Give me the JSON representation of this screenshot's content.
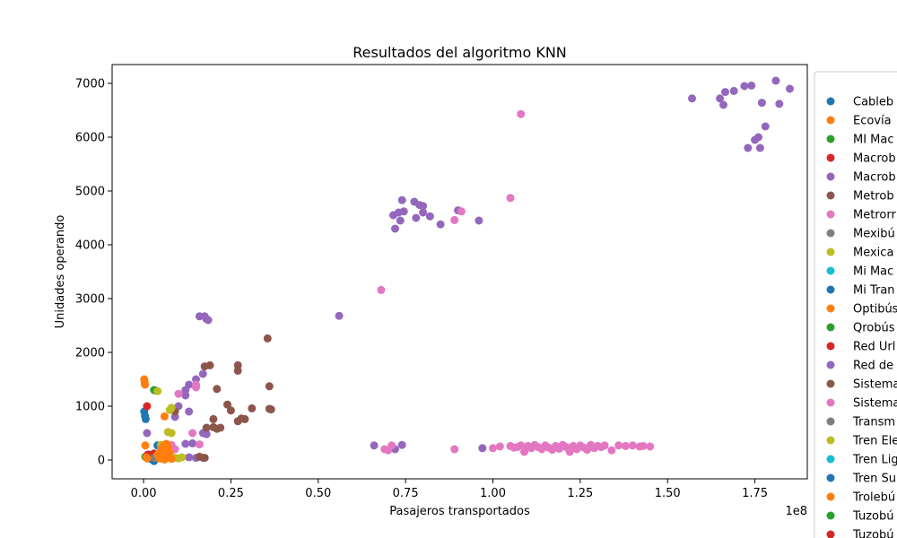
{
  "chart_data": {
    "type": "scatter",
    "title": "Resultados del algoritmo KNN",
    "xlabel": "Pasajeros transportados",
    "ylabel": "Unidades operando",
    "x_offset_label": "1e8",
    "xlim": [
      -0.09,
      1.9
    ],
    "ylim": [
      -350,
      7350
    ],
    "x_ticks": [
      0.0,
      0.25,
      0.5,
      0.75,
      1.0,
      1.25,
      1.5,
      1.75
    ],
    "x_tick_labels": [
      "0.00",
      "0.25",
      "0.50",
      "0.75",
      "1.00",
      "1.25",
      "1.50",
      "1.75"
    ],
    "y_ticks": [
      0,
      1000,
      2000,
      3000,
      4000,
      5000,
      6000,
      7000
    ],
    "y_tick_labels": [
      "0",
      "1000",
      "2000",
      "3000",
      "4000",
      "5000",
      "6000",
      "7000"
    ],
    "grid": false,
    "legend_position": "right, outside, clipped",
    "series": [
      {
        "name": "Cableb",
        "color": "#1f77b4",
        "points": [
          [
            0.002,
            900
          ],
          [
            0.004,
            820
          ],
          [
            0.006,
            760
          ],
          [
            0.01,
            50
          ],
          [
            0.02,
            20
          ],
          [
            0.03,
            -20
          ],
          [
            0.035,
            1290
          ],
          [
            0.05,
            60
          ],
          [
            0.06,
            30
          ],
          [
            0.04,
            270
          ],
          [
            0.015,
            100
          ]
        ]
      },
      {
        "name": "Ecovía",
        "color": "#ff7f0e",
        "points": []
      },
      {
        "name": "MI Mac",
        "color": "#2ca02c",
        "points": [
          [
            0.03,
            1300
          ],
          [
            0.005,
            60
          ],
          [
            0.02,
            80
          ]
        ]
      },
      {
        "name": "Macrob",
        "color": "#d62728",
        "points": [
          [
            0.01,
            1000
          ],
          [
            0.012,
            100
          ],
          [
            0.02,
            60
          ],
          [
            0.03,
            120
          ]
        ]
      },
      {
        "name": "Macrob",
        "color": "#9467bd",
        "points": [
          [
            1.57,
            6720
          ],
          [
            1.65,
            6720
          ],
          [
            1.66,
            6600
          ],
          [
            1.665,
            6840
          ],
          [
            1.69,
            6860
          ],
          [
            1.72,
            6950
          ],
          [
            1.74,
            6960
          ],
          [
            1.77,
            6640
          ],
          [
            1.81,
            7050
          ],
          [
            1.82,
            6620
          ],
          [
            1.85,
            6900
          ],
          [
            1.78,
            6200
          ],
          [
            1.75,
            5950
          ],
          [
            1.76,
            6000
          ],
          [
            1.73,
            5800
          ],
          [
            1.765,
            5800
          ],
          [
            0.72,
            4300
          ],
          [
            0.715,
            4550
          ],
          [
            0.73,
            4600
          ],
          [
            0.735,
            4450
          ],
          [
            0.74,
            4830
          ],
          [
            0.745,
            4620
          ],
          [
            0.775,
            4800
          ],
          [
            0.78,
            4500
          ],
          [
            0.79,
            4740
          ],
          [
            0.8,
            4720
          ],
          [
            0.8,
            4600
          ],
          [
            0.82,
            4530
          ],
          [
            0.85,
            4380
          ],
          [
            0.9,
            4640
          ],
          [
            0.96,
            4450
          ],
          [
            0.56,
            2680
          ],
          [
            0.16,
            2670
          ],
          [
            0.175,
            2670
          ],
          [
            0.18,
            2620
          ],
          [
            0.185,
            2600
          ],
          [
            0.66,
            270
          ],
          [
            0.72,
            200
          ],
          [
            0.74,
            280
          ],
          [
            0.97,
            220
          ],
          [
            0.15,
            1500
          ],
          [
            0.17,
            1600
          ],
          [
            0.12,
            1200
          ],
          [
            0.1,
            1000
          ],
          [
            0.13,
            900
          ],
          [
            0.09,
            800
          ],
          [
            0.17,
            500
          ],
          [
            0.18,
            480
          ],
          [
            0.12,
            300
          ],
          [
            0.14,
            310
          ],
          [
            0.13,
            50
          ],
          [
            0.15,
            40
          ],
          [
            0.17,
            40
          ],
          [
            0.01,
            500
          ],
          [
            0.12,
            1300
          ],
          [
            0.13,
            1400
          ]
        ]
      },
      {
        "name": "Metrob",
        "color": "#8c564b",
        "points": [
          [
            0.355,
            2260
          ],
          [
            0.36,
            1370
          ],
          [
            0.36,
            950
          ],
          [
            0.365,
            940
          ],
          [
            0.31,
            960
          ],
          [
            0.28,
            770
          ],
          [
            0.27,
            720
          ],
          [
            0.29,
            760
          ],
          [
            0.27,
            1760
          ],
          [
            0.27,
            1660
          ],
          [
            0.24,
            1030
          ],
          [
            0.25,
            920
          ],
          [
            0.21,
            1320
          ],
          [
            0.175,
            1740
          ],
          [
            0.19,
            1760
          ],
          [
            0.2,
            760
          ],
          [
            0.2,
            610
          ],
          [
            0.22,
            600
          ],
          [
            0.21,
            580
          ],
          [
            0.18,
            600
          ],
          [
            0.175,
            40
          ],
          [
            0.16,
            60
          ],
          [
            0.09,
            900
          ]
        ]
      },
      {
        "name": "Metrorr",
        "color": "#e377c2",
        "points": [
          [
            1.08,
            6430
          ],
          [
            1.05,
            4870
          ],
          [
            0.91,
            4620
          ],
          [
            0.89,
            4460
          ],
          [
            0.68,
            3160
          ],
          [
            0.15,
            1400
          ],
          [
            0.15,
            1350
          ],
          [
            0.1,
            1230
          ],
          [
            0.14,
            500
          ],
          [
            0.16,
            290
          ],
          [
            0.08,
            280
          ],
          [
            0.09,
            200
          ],
          [
            0.69,
            200
          ],
          [
            0.7,
            180
          ],
          [
            0.71,
            270
          ],
          [
            0.89,
            200
          ],
          [
            1.0,
            220
          ],
          [
            1.02,
            250
          ],
          [
            1.05,
            260
          ],
          [
            1.06,
            230
          ],
          [
            1.07,
            240
          ],
          [
            1.08,
            270
          ],
          [
            1.09,
            150
          ],
          [
            1.1,
            260
          ],
          [
            1.11,
            220
          ],
          [
            1.12,
            280
          ],
          [
            1.13,
            240
          ],
          [
            1.14,
            200
          ],
          [
            1.15,
            270
          ],
          [
            1.16,
            230
          ],
          [
            1.17,
            190
          ],
          [
            1.18,
            260
          ],
          [
            1.19,
            210
          ],
          [
            1.2,
            280
          ],
          [
            1.21,
            240
          ],
          [
            1.22,
            150
          ],
          [
            1.23,
            260
          ],
          [
            1.24,
            200
          ],
          [
            1.25,
            270
          ],
          [
            1.26,
            230
          ],
          [
            1.27,
            190
          ],
          [
            1.28,
            280
          ],
          [
            1.29,
            220
          ],
          [
            1.3,
            260
          ],
          [
            1.31,
            240
          ],
          [
            1.32,
            270
          ],
          [
            1.34,
            180
          ],
          [
            1.36,
            270
          ],
          [
            1.38,
            260
          ],
          [
            1.4,
            270
          ],
          [
            1.42,
            250
          ],
          [
            1.43,
            260
          ],
          [
            1.45,
            250
          ]
        ]
      },
      {
        "name": "Mexibú",
        "color": "#7f7f7f",
        "points": [
          [
            0.03,
            40
          ],
          [
            0.05,
            30
          ]
        ]
      },
      {
        "name": "Mexica",
        "color": "#bcbd22",
        "points": [
          [
            0.04,
            1280
          ],
          [
            0.08,
            970
          ],
          [
            0.075,
            930
          ],
          [
            0.07,
            520
          ],
          [
            0.08,
            500
          ],
          [
            0.09,
            40
          ],
          [
            0.1,
            30
          ],
          [
            0.11,
            50
          ],
          [
            0.05,
            280
          ]
        ]
      },
      {
        "name": "Mi Mac",
        "color": "#17becf",
        "points": []
      },
      {
        "name": "Mi Tran",
        "color": "#1f77b4",
        "points": []
      },
      {
        "name": "Optibús",
        "color": "#ff7f0e",
        "points": [
          [
            0.002,
            1500
          ],
          [
            0.003,
            1450
          ],
          [
            0.004,
            1400
          ],
          [
            0.06,
            810
          ],
          [
            0.06,
            280
          ],
          [
            0.065,
            300
          ],
          [
            0.07,
            260
          ],
          [
            0.055,
            240
          ],
          [
            0.05,
            200
          ],
          [
            0.06,
            180
          ],
          [
            0.07,
            160
          ],
          [
            0.075,
            140
          ],
          [
            0.05,
            120
          ],
          [
            0.06,
            100
          ],
          [
            0.07,
            80
          ],
          [
            0.055,
            60
          ],
          [
            0.065,
            40
          ],
          [
            0.045,
            30
          ],
          [
            0.08,
            20
          ],
          [
            0.06,
            10
          ],
          [
            0.005,
            270
          ],
          [
            0.008,
            50
          ],
          [
            0.01,
            30
          ],
          [
            0.04,
            100
          ]
        ]
      },
      {
        "name": "Qrobús",
        "color": "#2ca02c",
        "points": []
      },
      {
        "name": "Red Url",
        "color": "#d62728",
        "points": []
      },
      {
        "name": "Red de",
        "color": "#9467bd",
        "points": []
      },
      {
        "name": "Sistema",
        "color": "#8c564b",
        "points": []
      },
      {
        "name": "Sistema",
        "color": "#e377c2",
        "points": []
      },
      {
        "name": "Transm",
        "color": "#7f7f7f",
        "points": []
      },
      {
        "name": "Tren Ele",
        "color": "#bcbd22",
        "points": []
      },
      {
        "name": "Tren Lig",
        "color": "#17becf",
        "points": []
      },
      {
        "name": "Tren Su",
        "color": "#1f77b4",
        "points": []
      },
      {
        "name": "Trolebú",
        "color": "#ff7f0e",
        "points": []
      },
      {
        "name": "Tuzobú",
        "color": "#2ca02c",
        "points": []
      },
      {
        "name": "Tuzobú",
        "color": "#d62728",
        "points": []
      }
    ]
  }
}
